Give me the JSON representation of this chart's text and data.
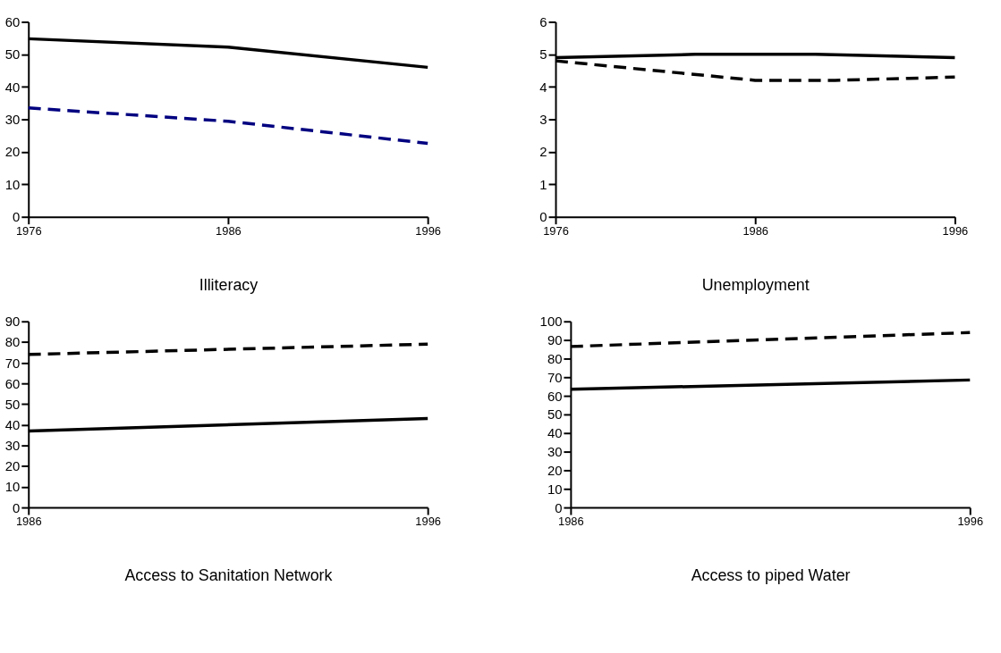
{
  "chart_data": [
    {
      "type": "line",
      "title": "Illiteracy",
      "xlim": [
        1976,
        1996
      ],
      "xticks": [
        1976,
        1986,
        1996
      ],
      "ylim": [
        0,
        60
      ],
      "yticks": [
        0,
        10,
        20,
        30,
        40,
        50,
        60
      ],
      "grid": false,
      "line_style": "solid",
      "series": [
        {
          "color": "#000000",
          "x": [
            1976,
            1986,
            1996
          ],
          "values": [
            54.8,
            52.2,
            46
          ]
        },
        {
          "color": "#000080",
          "line_style": "dashed",
          "x": [
            1976,
            1986,
            1996
          ],
          "values": [
            33.5,
            29.4,
            22.6
          ]
        }
      ]
    },
    {
      "type": "line",
      "title": "Unemployment",
      "xlim": [
        1976,
        1996
      ],
      "xticks": [
        1976,
        1986,
        1996
      ],
      "ylim": [
        0,
        6
      ],
      "yticks": [
        0,
        1,
        2,
        3,
        4,
        5,
        6
      ],
      "grid": false,
      "line_style": "solid",
      "series": [
        {
          "color": "#000000",
          "x": [
            1976,
            1983,
            1989,
            1996
          ],
          "values": [
            4.9,
            5.0,
            5.0,
            4.9
          ]
        },
        {
          "color": "#000000",
          "line_style": "dashed",
          "x": [
            1976,
            1986,
            1990,
            1996
          ],
          "values": [
            4.8,
            4.2,
            4.2,
            4.3
          ]
        }
      ]
    },
    {
      "type": "line",
      "title": "Access to Sanitation Network",
      "xlim": [
        1986,
        1996
      ],
      "xticks": [
        1986,
        1996
      ],
      "ylim": [
        0,
        90
      ],
      "yticks": [
        0,
        10,
        20,
        30,
        40,
        50,
        60,
        70,
        80,
        90
      ],
      "grid": false,
      "line_style": "solid",
      "series": [
        {
          "color": "#000000",
          "x": [
            1986,
            1996
          ],
          "values": [
            37,
            43
          ]
        },
        {
          "color": "#000000",
          "line_style": "dashed",
          "x": [
            1986,
            1996
          ],
          "values": [
            74,
            79
          ]
        }
      ]
    },
    {
      "type": "line",
      "title": "Access to piped Water",
      "xlim": [
        1986,
        1996
      ],
      "xticks": [
        1986,
        1996
      ],
      "ylim": [
        0,
        100
      ],
      "yticks": [
        0,
        10,
        20,
        30,
        40,
        50,
        60,
        70,
        80,
        90,
        100
      ],
      "grid": false,
      "line_style": "solid",
      "series": [
        {
          "color": "#000000",
          "x": [
            1986,
            1996
          ],
          "values": [
            63.5,
            68.5
          ]
        },
        {
          "color": "#000000",
          "line_style": "dashed",
          "x": [
            1986,
            1996
          ],
          "values": [
            86.5,
            94
          ]
        }
      ]
    }
  ]
}
